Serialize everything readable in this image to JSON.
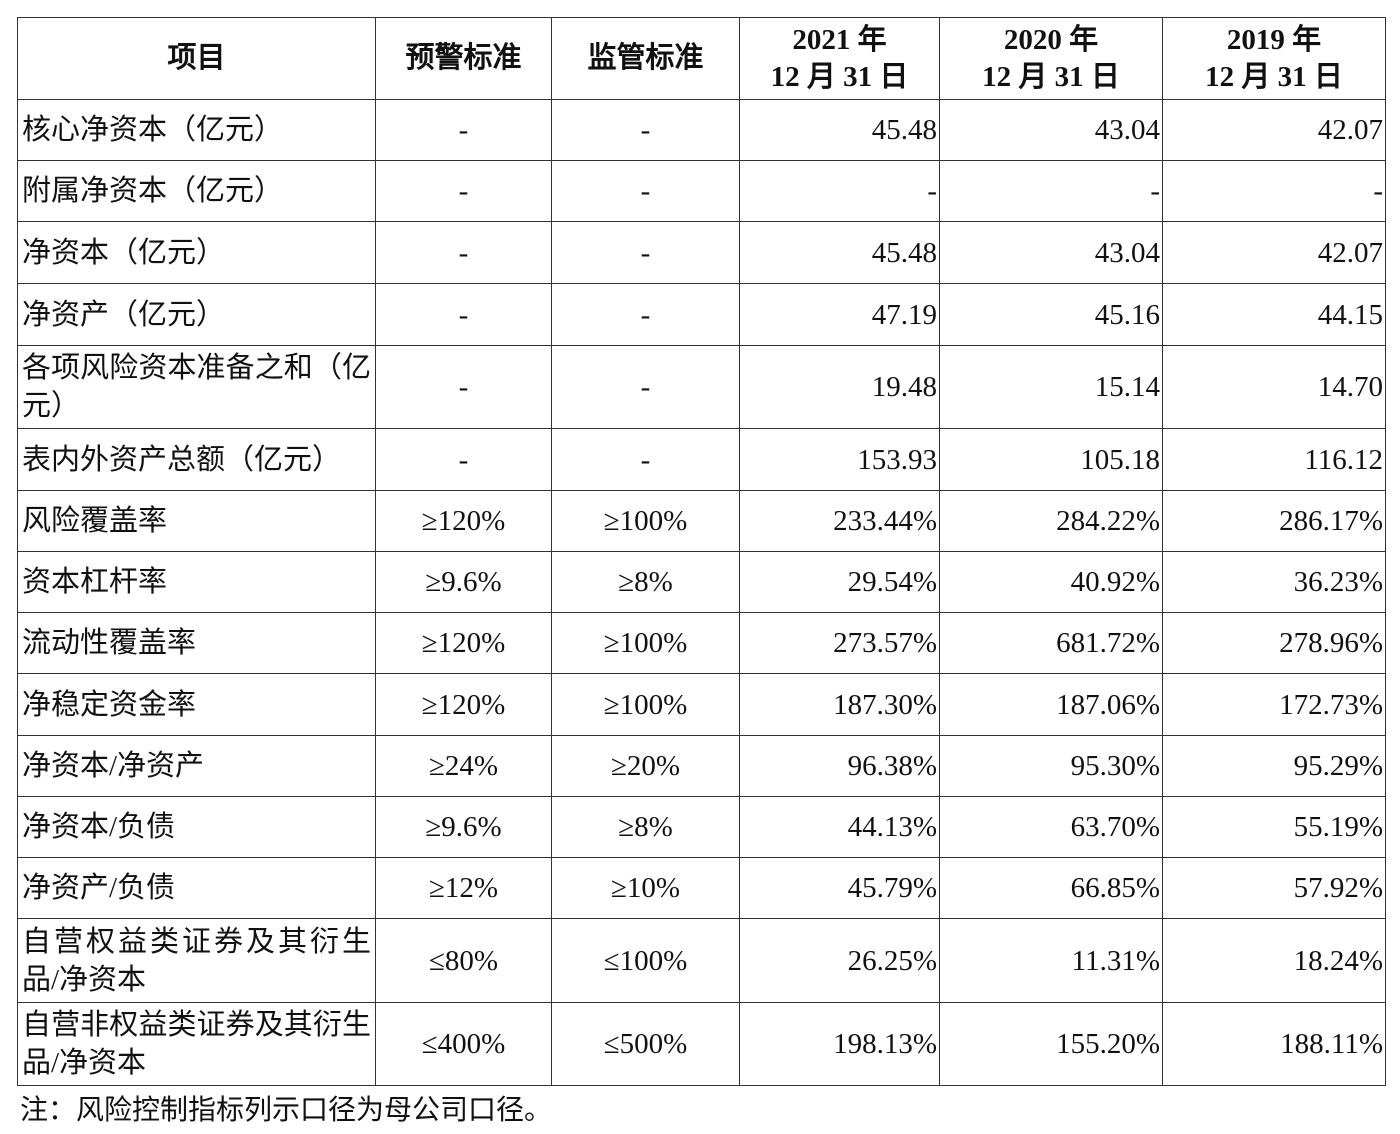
{
  "table": {
    "header": [
      "项目",
      "预警标准",
      "监管标准",
      "2021 年\n12 月 31 日",
      "2020 年\n12 月 31 日",
      "2019 年\n12 月 31 日"
    ],
    "rows": [
      [
        "核心净资本（亿元）",
        "-",
        "-",
        "45.48",
        "43.04",
        "42.07"
      ],
      [
        "附属净资本（亿元）",
        "-",
        "-",
        "-",
        "-",
        "-"
      ],
      [
        "净资本（亿元）",
        "-",
        "-",
        "45.48",
        "43.04",
        "42.07"
      ],
      [
        "净资产（亿元）",
        "-",
        "-",
        "47.19",
        "45.16",
        "44.15"
      ],
      [
        "各项风险资本准备之和（亿元）",
        "-",
        "-",
        "19.48",
        "15.14",
        "14.70"
      ],
      [
        "表内外资产总额（亿元）",
        "-",
        "-",
        "153.93",
        "105.18",
        "116.12"
      ],
      [
        "风险覆盖率",
        "≥120%",
        "≥100%",
        "233.44%",
        "284.22%",
        "286.17%"
      ],
      [
        "资本杠杆率",
        "≥9.6%",
        "≥8%",
        "29.54%",
        "40.92%",
        "36.23%"
      ],
      [
        "流动性覆盖率",
        "≥120%",
        "≥100%",
        "273.57%",
        "681.72%",
        "278.96%"
      ],
      [
        "净稳定资金率",
        "≥120%",
        "≥100%",
        "187.30%",
        "187.06%",
        "172.73%"
      ],
      [
        "净资本/净资产",
        "≥24%",
        "≥20%",
        "96.38%",
        "95.30%",
        "95.29%"
      ],
      [
        "净资本/负债",
        "≥9.6%",
        "≥8%",
        "44.13%",
        "63.70%",
        "55.19%"
      ],
      [
        "净资产/负债",
        "≥12%",
        "≥10%",
        "45.79%",
        "66.85%",
        "57.92%"
      ],
      [
        "自营权益类证券及其衍生品/净资本",
        "≤80%",
        "≤100%",
        "26.25%",
        "11.31%",
        "18.24%"
      ],
      [
        "自营非权益类证券及其衍生品/净资本",
        "≤400%",
        "≤500%",
        "198.13%",
        "155.20%",
        "188.11%"
      ]
    ]
  },
  "note": "注：风险控制指标列示口径为母公司口径。"
}
